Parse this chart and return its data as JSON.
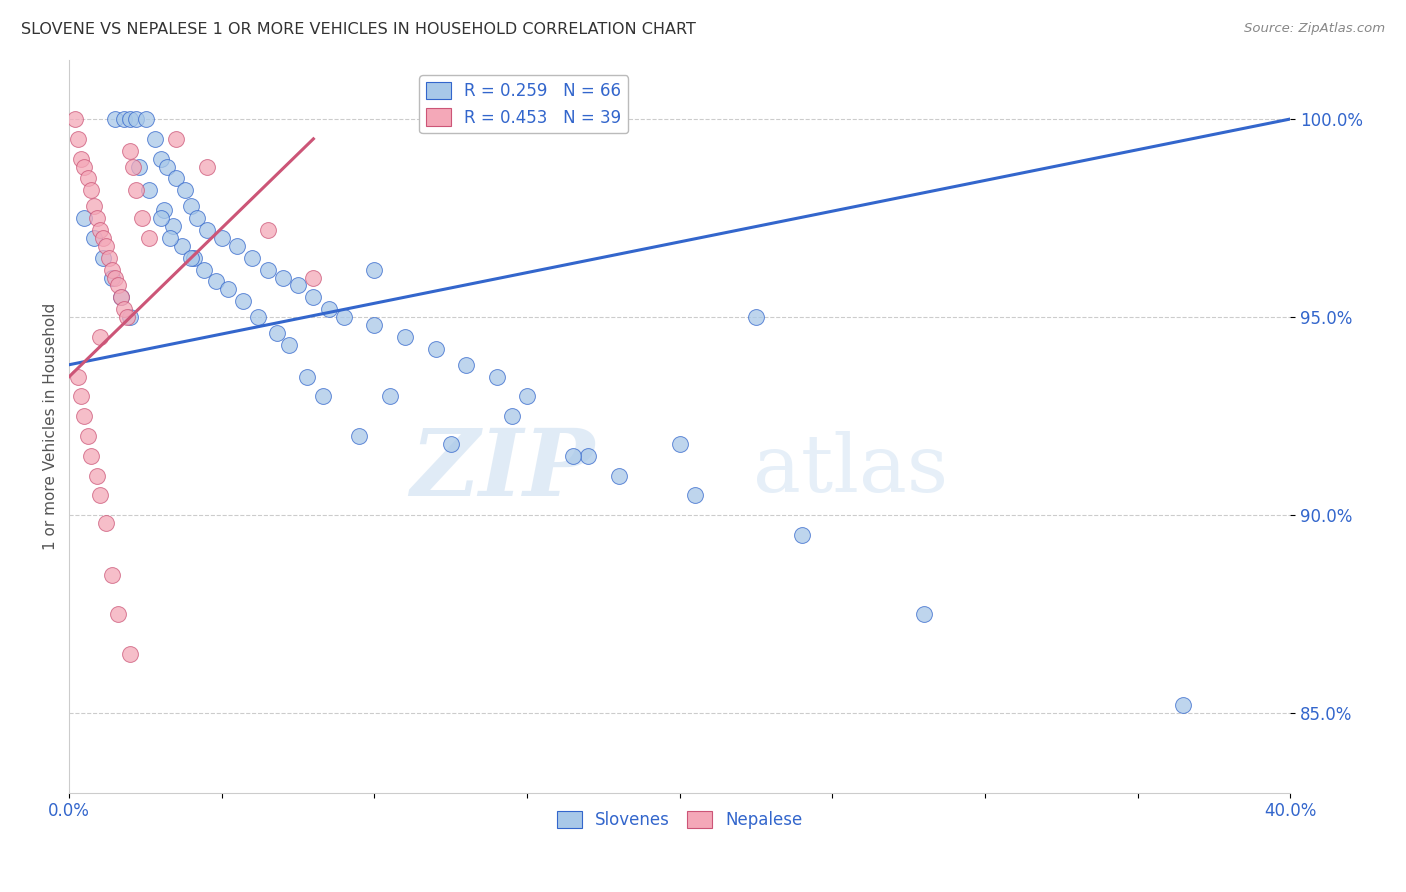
{
  "title": "SLOVENE VS NEPALESE 1 OR MORE VEHICLES IN HOUSEHOLD CORRELATION CHART",
  "source": "Source: ZipAtlas.com",
  "ylabel": "1 or more Vehicles in Household",
  "xlim": [
    0.0,
    40.0
  ],
  "ylim": [
    83.0,
    101.5
  ],
  "yticks": [
    85.0,
    90.0,
    95.0,
    100.0
  ],
  "ytick_labels": [
    "85.0%",
    "90.0%",
    "95.0%",
    "100.0%"
  ],
  "blue_color": "#A8C8E8",
  "pink_color": "#F4A8B8",
  "blue_line_color": "#3366CC",
  "pink_line_color": "#CC5577",
  "legend_blue_R": "R = 0.259",
  "legend_blue_N": "N = 66",
  "legend_pink_R": "R = 0.453",
  "legend_pink_N": "N = 39",
  "title_color": "#333333",
  "source_color": "#888888",
  "axis_label_color": "#3366CC",
  "watermark1": "ZIP",
  "watermark2": "atlas",
  "blue_scatter_x": [
    1.5,
    1.8,
    2.0,
    2.2,
    2.5,
    2.8,
    3.0,
    3.2,
    3.5,
    3.8,
    4.0,
    4.2,
    4.5,
    5.0,
    5.5,
    6.0,
    6.5,
    7.0,
    7.5,
    8.0,
    8.5,
    9.0,
    10.0,
    11.0,
    12.0,
    13.0,
    14.0,
    15.0,
    17.0,
    18.0,
    20.5,
    24.0,
    28.0,
    36.5,
    2.3,
    2.6,
    3.1,
    3.4,
    3.7,
    4.1,
    4.4,
    4.8,
    5.2,
    5.7,
    6.2,
    6.8,
    7.2,
    7.8,
    8.3,
    9.5,
    10.5,
    12.5,
    14.5,
    16.5,
    20.0,
    22.5,
    0.5,
    0.8,
    1.1,
    1.4,
    1.7,
    2.0,
    3.0,
    3.3,
    4.0,
    10.0
  ],
  "blue_scatter_y": [
    100.0,
    100.0,
    100.0,
    100.0,
    100.0,
    99.5,
    99.0,
    98.8,
    98.5,
    98.2,
    97.8,
    97.5,
    97.2,
    97.0,
    96.8,
    96.5,
    96.2,
    96.0,
    95.8,
    95.5,
    95.2,
    95.0,
    94.8,
    94.5,
    94.2,
    93.8,
    93.5,
    93.0,
    91.5,
    91.0,
    90.5,
    89.5,
    87.5,
    85.2,
    98.8,
    98.2,
    97.7,
    97.3,
    96.8,
    96.5,
    96.2,
    95.9,
    95.7,
    95.4,
    95.0,
    94.6,
    94.3,
    93.5,
    93.0,
    92.0,
    93.0,
    91.8,
    92.5,
    91.5,
    91.8,
    95.0,
    97.5,
    97.0,
    96.5,
    96.0,
    95.5,
    95.0,
    97.5,
    97.0,
    96.5,
    96.2
  ],
  "pink_scatter_x": [
    0.2,
    0.3,
    0.4,
    0.5,
    0.6,
    0.7,
    0.8,
    0.9,
    1.0,
    1.1,
    1.2,
    1.3,
    1.4,
    1.5,
    1.6,
    1.7,
    1.8,
    1.9,
    2.0,
    2.1,
    2.2,
    2.4,
    2.6,
    0.3,
    0.4,
    0.5,
    0.6,
    0.7,
    0.9,
    1.0,
    1.2,
    1.4,
    1.6,
    2.0,
    3.5,
    4.5,
    6.5,
    8.0,
    1.0
  ],
  "pink_scatter_y": [
    100.0,
    99.5,
    99.0,
    98.8,
    98.5,
    98.2,
    97.8,
    97.5,
    97.2,
    97.0,
    96.8,
    96.5,
    96.2,
    96.0,
    95.8,
    95.5,
    95.2,
    95.0,
    99.2,
    98.8,
    98.2,
    97.5,
    97.0,
    93.5,
    93.0,
    92.5,
    92.0,
    91.5,
    91.0,
    90.5,
    89.8,
    88.5,
    87.5,
    86.5,
    99.5,
    98.8,
    97.2,
    96.0,
    94.5
  ],
  "blue_line_x": [
    0.0,
    40.0
  ],
  "blue_line_y": [
    93.8,
    100.0
  ],
  "pink_line_x": [
    0.0,
    8.0
  ],
  "pink_line_y": [
    93.5,
    99.5
  ]
}
